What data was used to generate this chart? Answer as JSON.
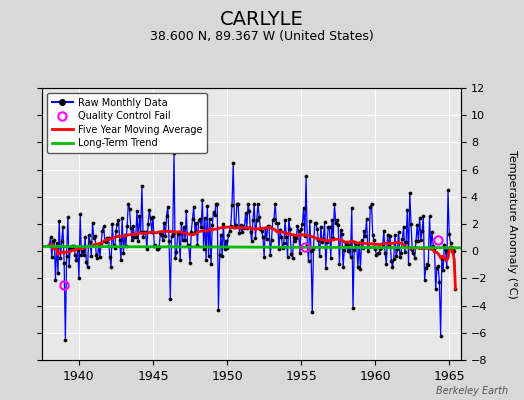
{
  "title": "CARLYLE",
  "subtitle": "38.600 N, 89.367 W (United States)",
  "ylabel": "Temperature Anomaly (°C)",
  "xlim": [
    1937.5,
    1965.8
  ],
  "ylim": [
    -8,
    12
  ],
  "yticks": [
    -8,
    -6,
    -4,
    -2,
    0,
    2,
    4,
    6,
    8,
    10,
    12
  ],
  "xticks": [
    1940,
    1945,
    1950,
    1955,
    1960,
    1965
  ],
  "bg_color": "#d8d8d8",
  "plot_bg_color": "#e8e8e8",
  "grid_color": "#ffffff",
  "title_fontsize": 14,
  "subtitle_fontsize": 9,
  "watermark": "Berkeley Earth",
  "line_color": "#0000ff",
  "marker_color": "#000000",
  "ma_color": "#ff0000",
  "trend_color": "#00bb00",
  "qc_color": "#ff00ff",
  "qc_points": [
    {
      "year": 1939.0,
      "val": -2.5
    },
    {
      "year": 1955.25,
      "val": 0.3
    },
    {
      "year": 1964.25,
      "val": 0.8
    }
  ]
}
